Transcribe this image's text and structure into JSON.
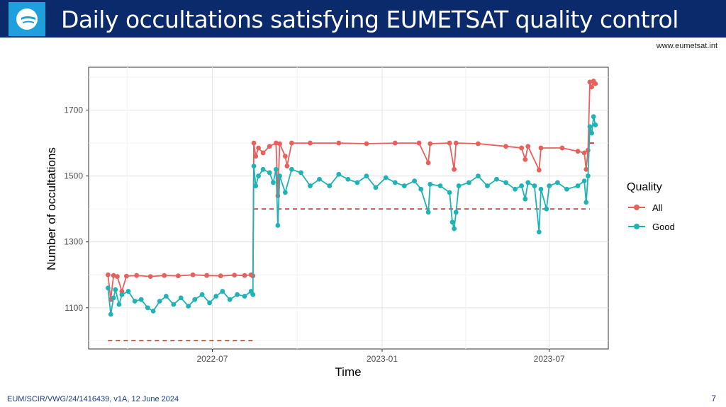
{
  "header": {
    "title": "Daily occultations satisfying EUMETSAT quality control",
    "logo_icon": "eumetsat-logo-icon",
    "website": "www.eumetsat.int"
  },
  "footer": {
    "reference": "EUM/SCIR/VWG/24/1416439, v1A, 12 June 2024",
    "page_number": "7"
  },
  "colors": {
    "header_bg": "#0b2a6b",
    "logo_bg": "#1ea0dc",
    "all": "#e8605c",
    "good": "#1fb3b5",
    "threshold": "#d7191c"
  },
  "chart_data": {
    "type": "line",
    "xlabel": "Time",
    "ylabel": "Number of occultations",
    "x_ticks": [
      "2022-07",
      "2023-01",
      "2023-07"
    ],
    "y_ticks": [
      1100,
      1300,
      1500,
      1700
    ],
    "ylim": [
      975,
      1830
    ],
    "xlim": [
      "2022-02-17",
      "2023-09-03"
    ],
    "grid": true,
    "legend": {
      "title": "Quality",
      "placement": "right",
      "entries": [
        "All",
        "Good"
      ]
    },
    "series": [
      {
        "name": "All",
        "points": [
          [
            "2022-03-10",
            1200
          ],
          [
            "2022-03-13",
            1125
          ],
          [
            "2022-03-16",
            1198
          ],
          [
            "2022-03-20",
            1195
          ],
          [
            "2022-03-25",
            1150
          ],
          [
            "2022-03-30",
            1196
          ],
          [
            "2022-04-10",
            1198
          ],
          [
            "2022-04-25",
            1195
          ],
          [
            "2022-05-10",
            1198
          ],
          [
            "2022-05-25",
            1197
          ],
          [
            "2022-06-10",
            1200
          ],
          [
            "2022-06-25",
            1198
          ],
          [
            "2022-07-10",
            1197
          ],
          [
            "2022-07-25",
            1199
          ],
          [
            "2022-08-05",
            1198
          ],
          [
            "2022-08-12",
            1200
          ],
          [
            "2022-08-14",
            1197
          ],
          [
            "2022-08-15",
            1600
          ],
          [
            "2022-08-17",
            1560
          ],
          [
            "2022-08-20",
            1585
          ],
          [
            "2022-08-25",
            1570
          ],
          [
            "2022-09-01",
            1590
          ],
          [
            "2022-09-08",
            1600
          ],
          [
            "2022-09-10",
            1440
          ],
          [
            "2022-09-12",
            1598
          ],
          [
            "2022-09-18",
            1560
          ],
          [
            "2022-09-20",
            1530
          ],
          [
            "2022-09-25",
            1600
          ],
          [
            "2022-10-15",
            1600
          ],
          [
            "2022-11-15",
            1600
          ],
          [
            "2022-12-15",
            1598
          ],
          [
            "2023-01-15",
            1600
          ],
          [
            "2023-02-10",
            1600
          ],
          [
            "2023-02-20",
            1540
          ],
          [
            "2023-02-22",
            1598
          ],
          [
            "2023-03-15",
            1600
          ],
          [
            "2023-03-20",
            1520
          ],
          [
            "2023-03-22",
            1600
          ],
          [
            "2023-04-15",
            1598
          ],
          [
            "2023-05-15",
            1590
          ],
          [
            "2023-06-01",
            1585
          ],
          [
            "2023-06-05",
            1550
          ],
          [
            "2023-06-08",
            1590
          ],
          [
            "2023-06-20",
            1518
          ],
          [
            "2023-06-22",
            1585
          ],
          [
            "2023-07-15",
            1585
          ],
          [
            "2023-08-01",
            1575
          ],
          [
            "2023-08-08",
            1570
          ],
          [
            "2023-08-10",
            1520
          ],
          [
            "2023-08-12",
            1578
          ],
          [
            "2023-08-14",
            1785
          ],
          [
            "2023-08-16",
            1770
          ],
          [
            "2023-08-18",
            1788
          ],
          [
            "2023-08-20",
            1780
          ]
        ]
      },
      {
        "name": "Good",
        "points": [
          [
            "2022-03-10",
            1160
          ],
          [
            "2022-03-13",
            1080
          ],
          [
            "2022-03-16",
            1130
          ],
          [
            "2022-03-18",
            1155
          ],
          [
            "2022-03-22",
            1110
          ],
          [
            "2022-03-25",
            1140
          ],
          [
            "2022-04-01",
            1150
          ],
          [
            "2022-04-08",
            1120
          ],
          [
            "2022-04-15",
            1125
          ],
          [
            "2022-04-22",
            1100
          ],
          [
            "2022-04-28",
            1090
          ],
          [
            "2022-05-05",
            1120
          ],
          [
            "2022-05-12",
            1135
          ],
          [
            "2022-05-20",
            1110
          ],
          [
            "2022-05-28",
            1130
          ],
          [
            "2022-06-05",
            1105
          ],
          [
            "2022-06-12",
            1125
          ],
          [
            "2022-06-20",
            1140
          ],
          [
            "2022-06-28",
            1115
          ],
          [
            "2022-07-05",
            1135
          ],
          [
            "2022-07-12",
            1150
          ],
          [
            "2022-07-20",
            1125
          ],
          [
            "2022-07-28",
            1140
          ],
          [
            "2022-08-05",
            1135
          ],
          [
            "2022-08-12",
            1150
          ],
          [
            "2022-08-14",
            1140
          ],
          [
            "2022-08-15",
            1530
          ],
          [
            "2022-08-17",
            1470
          ],
          [
            "2022-08-20",
            1500
          ],
          [
            "2022-08-25",
            1520
          ],
          [
            "2022-09-01",
            1510
          ],
          [
            "2022-09-05",
            1480
          ],
          [
            "2022-09-08",
            1520
          ],
          [
            "2022-09-10",
            1350
          ],
          [
            "2022-09-12",
            1500
          ],
          [
            "2022-09-18",
            1450
          ],
          [
            "2022-09-25",
            1520
          ],
          [
            "2022-10-05",
            1510
          ],
          [
            "2022-10-15",
            1470
          ],
          [
            "2022-10-25",
            1490
          ],
          [
            "2022-11-05",
            1470
          ],
          [
            "2022-11-15",
            1505
          ],
          [
            "2022-11-25",
            1490
          ],
          [
            "2022-12-05",
            1480
          ],
          [
            "2022-12-15",
            1500
          ],
          [
            "2022-12-25",
            1465
          ],
          [
            "2023-01-05",
            1495
          ],
          [
            "2023-01-15",
            1480
          ],
          [
            "2023-01-25",
            1470
          ],
          [
            "2023-02-05",
            1485
          ],
          [
            "2023-02-12",
            1460
          ],
          [
            "2023-02-20",
            1390
          ],
          [
            "2023-02-22",
            1475
          ],
          [
            "2023-03-05",
            1470
          ],
          [
            "2023-03-15",
            1450
          ],
          [
            "2023-03-18",
            1360
          ],
          [
            "2023-03-20",
            1340
          ],
          [
            "2023-03-22",
            1390
          ],
          [
            "2023-03-25",
            1470
          ],
          [
            "2023-04-05",
            1480
          ],
          [
            "2023-04-15",
            1500
          ],
          [
            "2023-04-25",
            1470
          ],
          [
            "2023-05-05",
            1490
          ],
          [
            "2023-05-15",
            1480
          ],
          [
            "2023-05-25",
            1460
          ],
          [
            "2023-06-01",
            1470
          ],
          [
            "2023-06-05",
            1430
          ],
          [
            "2023-06-08",
            1480
          ],
          [
            "2023-06-15",
            1470
          ],
          [
            "2023-06-20",
            1330
          ],
          [
            "2023-06-22",
            1460
          ],
          [
            "2023-06-28",
            1400
          ],
          [
            "2023-07-01",
            1470
          ],
          [
            "2023-07-10",
            1480
          ],
          [
            "2023-07-20",
            1460
          ],
          [
            "2023-08-01",
            1470
          ],
          [
            "2023-08-08",
            1485
          ],
          [
            "2023-08-10",
            1420
          ],
          [
            "2023-08-12",
            1500
          ],
          [
            "2023-08-14",
            1650
          ],
          [
            "2023-08-16",
            1630
          ],
          [
            "2023-08-18",
            1680
          ],
          [
            "2023-08-20",
            1655
          ]
        ]
      }
    ],
    "thresholds": [
      {
        "start": "2022-03-10",
        "end": "2022-08-14",
        "value": 1000
      },
      {
        "start": "2022-08-15",
        "end": "2023-08-14",
        "value": 1400
      },
      {
        "start": "2023-08-14",
        "end": "2023-08-20",
        "value": 1600
      }
    ]
  }
}
